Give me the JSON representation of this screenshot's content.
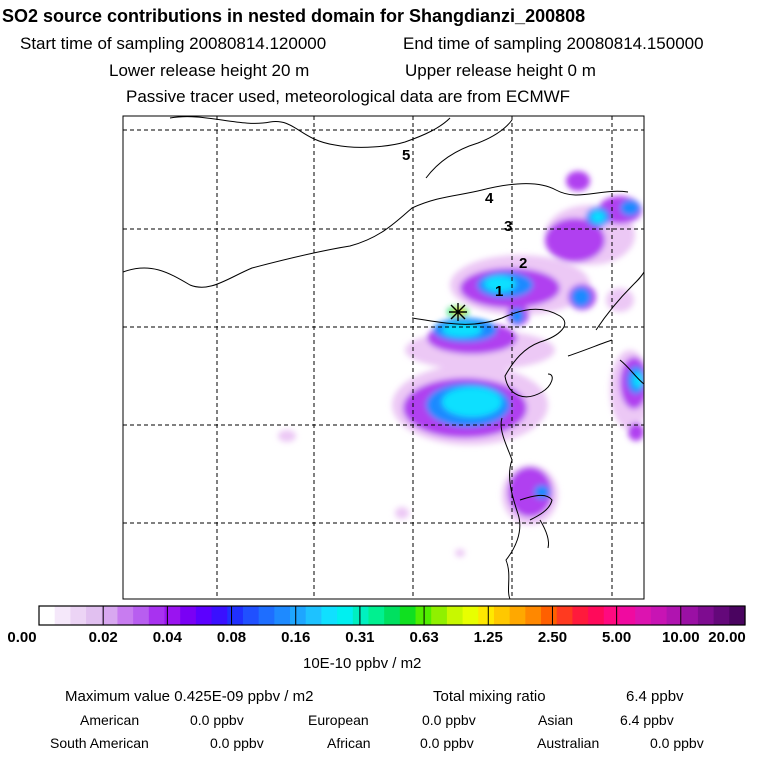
{
  "header": {
    "title": "SO2 source contributions in nested domain for Shangdianzi_200808",
    "start_time": "Start time of sampling 20080814.120000",
    "end_time": "End time of sampling 20080814.150000",
    "lower_release": "Lower release height   20 m",
    "upper_release": "Upper release height    0 m",
    "tracer_note": "Passive tracer used, meteorological data are from ECMWF"
  },
  "map": {
    "site_marker": "source-site-star",
    "trajectory_labels": [
      "1",
      "2",
      "3",
      "4",
      "5"
    ]
  },
  "colorbar": {
    "tick_labels": [
      "0.00",
      "0.02",
      "0.04",
      "0.08",
      "0.16",
      "0.31",
      "0.63",
      "1.25",
      "2.50",
      "5.00",
      "10.00",
      "20.00"
    ],
    "colors": [
      "#ffffff",
      "#f5e8fa",
      "#ecd4f5",
      "#e1c0f0",
      "#d8a8f0",
      "#c87cf0",
      "#b85ef0",
      "#a832f0",
      "#9a14f0",
      "#7a00f5",
      "#5c00ff",
      "#3a10ff",
      "#2030ff",
      "#2050ff",
      "#1e6eff",
      "#1e8aff",
      "#1ea6ff",
      "#1ec2ff",
      "#10e0ff",
      "#00f0f0",
      "#00f0c0",
      "#00f090",
      "#00e060",
      "#10e020",
      "#50ee00",
      "#90f000",
      "#c8f800",
      "#e8ff00",
      "#ffe800",
      "#ffc800",
      "#ffa800",
      "#ff8800",
      "#ff6000",
      "#ff3a20",
      "#ff1a3c",
      "#ff0a5a",
      "#ff0a80",
      "#f00aa0",
      "#dc14b0",
      "#c814b4",
      "#b014b0",
      "#9a10a4",
      "#7e0c90",
      "#64087a",
      "#4a0460"
    ],
    "unit_label": "10E-10 ppbv / m2"
  },
  "footer": {
    "max_value": "Maximum value  0.425E-09 ppbv / m2",
    "total_mixing": "Total mixing ratio",
    "total_mixing_value": "6.4 ppbv",
    "regions": [
      {
        "name": "American",
        "value": "0.0 ppbv"
      },
      {
        "name": "European",
        "value": "0.0 ppbv"
      },
      {
        "name": "Asian",
        "value": "6.4 ppbv"
      },
      {
        "name": "South American",
        "value": "0.0 ppbv"
      },
      {
        "name": "African",
        "value": "0.0 ppbv"
      },
      {
        "name": "Australian",
        "value": "0.0 ppbv"
      }
    ]
  }
}
